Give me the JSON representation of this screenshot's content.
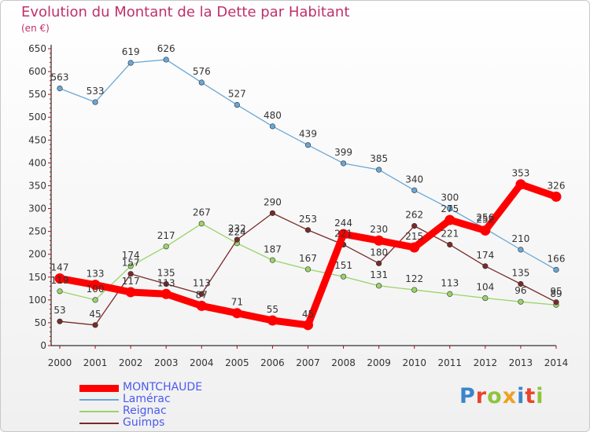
{
  "header": {
    "title": "Evolution du Montant de la Dette par Habitant",
    "unit": "(en €)"
  },
  "logo": {
    "text": "Proxiti",
    "colors": [
      "#3a86c8",
      "#e8452c",
      "#8fc43c",
      "#f0a020",
      "#3a86c8",
      "#e8452c",
      "#8fc43c"
    ]
  },
  "chart_data": {
    "type": "line",
    "x": [
      "2000",
      "2001",
      "2002",
      "2003",
      "2004",
      "2005",
      "2006",
      "2007",
      "2008",
      "2009",
      "2010",
      "2011",
      "2012",
      "2013",
      "2014"
    ],
    "ylim": [
      0,
      650
    ],
    "yticks": [
      0,
      50,
      100,
      150,
      200,
      250,
      300,
      350,
      400,
      450,
      500,
      550,
      600,
      650
    ],
    "grid": false,
    "legend": "bottom-left",
    "series": [
      {
        "name": "MONTCHAUDE",
        "color": "#ff0000",
        "legend_color": "#4a5af0",
        "values": [
          147,
          133,
          117,
          113,
          87,
          71,
          55,
          45,
          244,
          230,
          215,
          275,
          252,
          353,
          326
        ],
        "labels": [
          "147",
          "133",
          "117",
          "113",
          "87",
          "71",
          "55",
          "45",
          "244",
          "230",
          "215",
          "275",
          "252",
          "353",
          "326"
        ]
      },
      {
        "name": "Lamérac",
        "color": "#6aa7d6",
        "legend_color": "#4a5af0",
        "values": [
          563,
          533,
          619,
          626,
          576,
          527,
          480,
          439,
          399,
          385,
          340,
          300,
          256,
          210,
          166
        ],
        "labels": [
          "563",
          "533",
          "619",
          "626",
          "576",
          "527",
          "480",
          "439",
          "399",
          "385",
          "340",
          "300",
          "256",
          "210",
          "166"
        ]
      },
      {
        "name": "Reignac",
        "color": "#9ad36a",
        "legend_color": "#4a5af0",
        "values": [
          119,
          100,
          174,
          217,
          267,
          224,
          187,
          167,
          151,
          131,
          122,
          113,
          104,
          96,
          89
        ],
        "labels": [
          "119",
          "100",
          "174",
          "217",
          "267",
          "224",
          "187",
          "167",
          "151",
          "131",
          "122",
          "113",
          "104",
          "96",
          "89"
        ]
      },
      {
        "name": "Guimps",
        "color": "#7a2a2a",
        "legend_color": "#4a5af0",
        "values": [
          53,
          45,
          157,
          135,
          113,
          232,
          290,
          253,
          221,
          180,
          262,
          221,
          174,
          135,
          95
        ],
        "labels": [
          "53",
          "45",
          "157",
          "135",
          "113",
          "232",
          "290",
          "253",
          "221",
          "180",
          "262",
          "221",
          "174",
          "135",
          "95"
        ]
      }
    ]
  }
}
